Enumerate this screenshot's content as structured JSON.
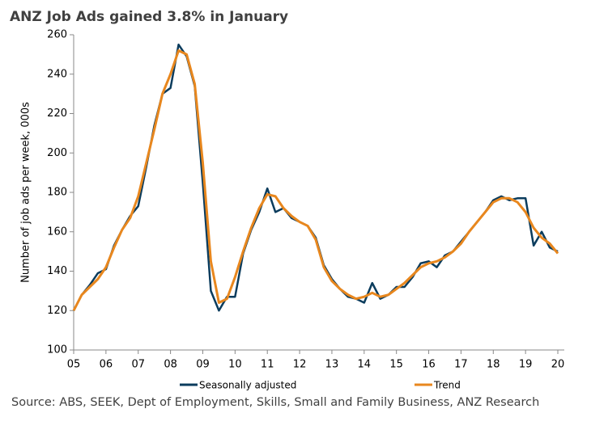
{
  "chart_data": {
    "type": "line",
    "title": "ANZ Job Ads gained 3.8% in January",
    "y_label": "Number of job ads per week, 000s",
    "source": "Source: ABS, SEEK, Dept of Employment, Skills, Small and Family Business, ANZ Research",
    "x": [
      2005,
      2005.25,
      2005.5,
      2005.75,
      2006,
      2006.25,
      2006.5,
      2006.75,
      2007,
      2007.25,
      2007.5,
      2007.75,
      2008,
      2008.25,
      2008.5,
      2008.75,
      2009,
      2009.25,
      2009.5,
      2009.75,
      2010,
      2010.25,
      2010.5,
      2010.75,
      2011,
      2011.25,
      2011.5,
      2011.75,
      2012,
      2012.25,
      2012.5,
      2012.75,
      2013,
      2013.25,
      2013.5,
      2013.75,
      2014,
      2014.25,
      2014.5,
      2014.75,
      2015,
      2015.25,
      2015.5,
      2015.75,
      2016,
      2016.25,
      2016.5,
      2016.75,
      2017,
      2017.25,
      2017.5,
      2017.75,
      2018,
      2018.25,
      2018.5,
      2018.75,
      2019,
      2019.25,
      2019.5,
      2019.75,
      2020
    ],
    "series": [
      {
        "name": "Seasonally adjusted",
        "color": "#0b3c5d",
        "values": [
          120,
          128,
          133,
          139,
          141,
          153,
          161,
          168,
          173,
          193,
          214,
          230,
          233,
          255,
          249,
          234,
          185,
          130,
          120,
          127,
          127,
          149,
          161,
          170,
          182,
          170,
          172,
          167,
          165,
          163,
          157,
          143,
          136,
          131,
          127,
          126,
          124,
          134,
          126,
          128,
          132,
          132,
          137,
          144,
          145,
          142,
          148,
          150,
          155,
          160,
          165,
          170,
          176,
          178,
          176,
          177,
          177,
          153,
          160,
          152,
          150
        ]
      },
      {
        "name": "Trend",
        "color": "#e8871e",
        "values": [
          120,
          128,
          132,
          136,
          142,
          152,
          161,
          167,
          178,
          195,
          212,
          230,
          240,
          252,
          250,
          235,
          195,
          145,
          124,
          126,
          137,
          150,
          162,
          172,
          179,
          178,
          172,
          168,
          165,
          163,
          156,
          142,
          135,
          131,
          128,
          126,
          127,
          129,
          127,
          128,
          131,
          134,
          138,
          142,
          144,
          145,
          147,
          150,
          154,
          160,
          165,
          170,
          175,
          177,
          177,
          175,
          170,
          162,
          157,
          154,
          149
        ]
      }
    ],
    "xlim": [
      2005,
      2020.2
    ],
    "xticks": [
      {
        "value": 2005,
        "label": "05"
      },
      {
        "value": 2006,
        "label": "06"
      },
      {
        "value": 2007,
        "label": "07"
      },
      {
        "value": 2008,
        "label": "08"
      },
      {
        "value": 2009,
        "label": "09"
      },
      {
        "value": 2010,
        "label": "10"
      },
      {
        "value": 2011,
        "label": "11"
      },
      {
        "value": 2012,
        "label": "12"
      },
      {
        "value": 2013,
        "label": "13"
      },
      {
        "value": 2014,
        "label": "14"
      },
      {
        "value": 2015,
        "label": "15"
      },
      {
        "value": 2016,
        "label": "16"
      },
      {
        "value": 2017,
        "label": "17"
      },
      {
        "value": 2018,
        "label": "18"
      },
      {
        "value": 2019,
        "label": "19"
      },
      {
        "value": 2020,
        "label": "20"
      }
    ],
    "ylim": [
      100,
      260
    ],
    "yticks": [
      100,
      120,
      140,
      160,
      180,
      200,
      220,
      240,
      260
    ],
    "grid": false
  }
}
